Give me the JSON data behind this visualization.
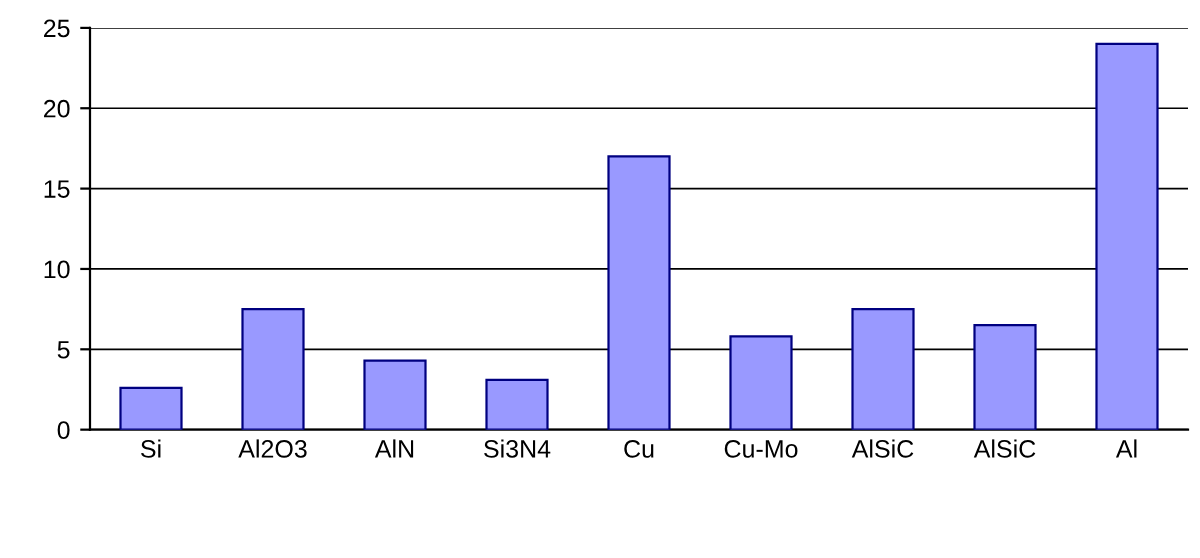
{
  "chart_data": {
    "type": "bar",
    "categories": [
      "Si",
      "Al2O3",
      "AlN",
      "Si3N4",
      "Cu",
      "Cu-Mo",
      "AlSiC",
      "AlSiC",
      "Al"
    ],
    "values": [
      2.6,
      7.5,
      4.3,
      3.1,
      17,
      5.8,
      7.5,
      6.5,
      24
    ],
    "color": "#9999ff",
    "ylim": [
      0,
      25
    ],
    "yticks": [
      0,
      5,
      10,
      15,
      20,
      25
    ],
    "grid": "y"
  }
}
